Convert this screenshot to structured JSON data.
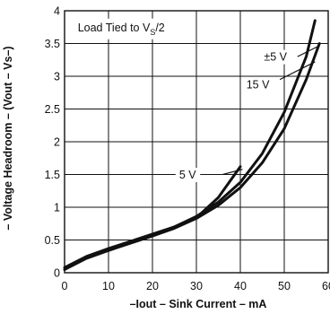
{
  "chart_data": {
    "type": "line",
    "title": "",
    "xlabel": "–Iout – Sink Current – mA",
    "ylabel": "– Voltage Headroom – (Vout – Vs–)",
    "xlim": [
      0,
      60
    ],
    "ylim": [
      0,
      4
    ],
    "x_ticks": [
      "0",
      "10",
      "20",
      "30",
      "40",
      "50",
      "60"
    ],
    "y_ticks": [
      "0",
      "0.5",
      "1",
      "1.5",
      "2",
      "2.5",
      "3",
      "3.5",
      "4"
    ],
    "grid": true,
    "annotation": {
      "prefix": "Load Tied to V",
      "subscript": "S",
      "suffix": "/2"
    },
    "series": [
      {
        "name": "5 V",
        "x": [
          0,
          5,
          10,
          15,
          20,
          25,
          30,
          35,
          40
        ],
        "y": [
          0.05,
          0.24,
          0.36,
          0.47,
          0.58,
          0.7,
          0.84,
          1.15,
          1.62
        ]
      },
      {
        "name": "15 V",
        "x": [
          0,
          5,
          10,
          15,
          20,
          25,
          30,
          35,
          40,
          45,
          50,
          55,
          58
        ],
        "y": [
          0.05,
          0.22,
          0.34,
          0.45,
          0.56,
          0.68,
          0.83,
          1.03,
          1.3,
          1.68,
          2.2,
          2.95,
          3.5
        ]
      },
      {
        "name": "±5 V",
        "x": [
          0,
          5,
          10,
          15,
          20,
          25,
          30,
          35,
          40,
          45,
          50,
          55,
          57
        ],
        "y": [
          0.08,
          0.25,
          0.37,
          0.48,
          0.59,
          0.7,
          0.86,
          1.08,
          1.38,
          1.82,
          2.45,
          3.3,
          3.85
        ]
      }
    ]
  }
}
